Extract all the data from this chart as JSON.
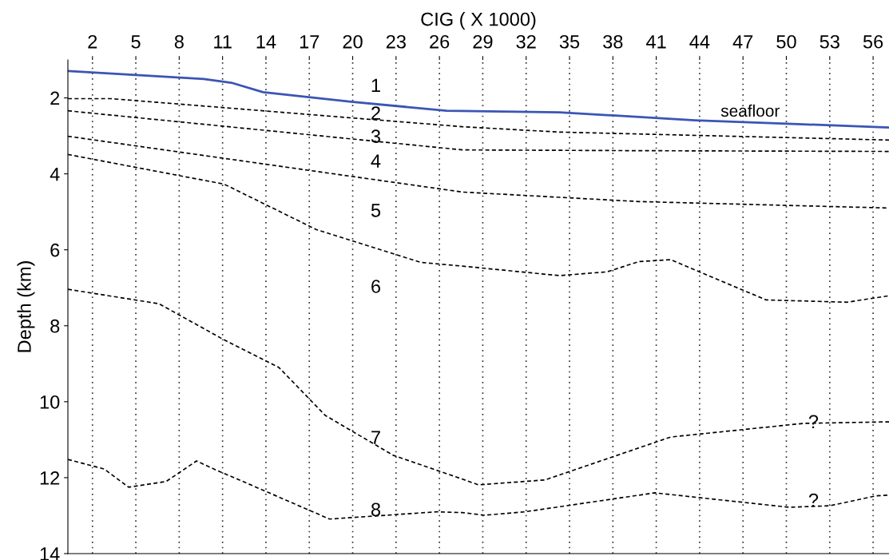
{
  "chart_data": {
    "type": "line",
    "xlabel": "CIG ( X 1000)",
    "ylabel": "Depth (km)",
    "xlim": [
      0.3,
      57.1
    ],
    "xticks": [
      2,
      5,
      8,
      11,
      14,
      17,
      20,
      23,
      26,
      29,
      32,
      35,
      38,
      41,
      44,
      47,
      50,
      53,
      56
    ],
    "ylim": [
      14,
      1.0
    ],
    "yticks": [
      2,
      4,
      6,
      8,
      10,
      12,
      14
    ],
    "grid": "x",
    "marker": "none",
    "series": [
      {
        "color": "#3b55b5",
        "line_style": "solid",
        "x": [
          0.3,
          9.7,
          11.6,
          13.8,
          19.9,
          26.5,
          34.3,
          43.7,
          50.8,
          57.1
        ],
        "values": [
          1.29,
          1.5,
          1.6,
          1.85,
          2.1,
          2.34,
          2.38,
          2.59,
          2.69,
          2.78
        ]
      },
      {
        "color": "#000000",
        "line_style": "dashed",
        "x": [
          0.3,
          3.3,
          27.6,
          34.3,
          57.1
        ],
        "values": [
          2.02,
          2.02,
          2.76,
          2.9,
          3.11
        ]
      },
      {
        "color": "#000000",
        "line_style": "dashed",
        "x": [
          0.3,
          27.6,
          39.8,
          57.1
        ],
        "values": [
          2.34,
          3.37,
          3.39,
          3.41
        ]
      },
      {
        "color": "#000000",
        "line_style": "dashed",
        "x": [
          0.3,
          27.6,
          39.8,
          57.1
        ],
        "values": [
          3.01,
          4.48,
          4.73,
          4.9
        ]
      },
      {
        "color": "#000000",
        "line_style": "dashed",
        "x": [
          0.3,
          11.1,
          17.5,
          24.7,
          27.6,
          34.3,
          37.6,
          39.8,
          42.0,
          45.3,
          48.6,
          54.2,
          57.1
        ],
        "values": [
          3.49,
          4.27,
          5.47,
          6.33,
          6.43,
          6.68,
          6.58,
          6.31,
          6.26,
          6.79,
          7.32,
          7.38,
          7.21
        ]
      },
      {
        "color": "#000000",
        "line_style": "dashed",
        "x": [
          0.3,
          6.6,
          11.1,
          14.9,
          18.1,
          22.8,
          27.6,
          28.7,
          33.3,
          42.0,
          51.2,
          57.1
        ],
        "values": [
          7.04,
          7.42,
          8.37,
          9.1,
          10.36,
          11.41,
          12.04,
          12.19,
          12.06,
          10.93,
          10.57,
          10.53
        ]
      },
      {
        "color": "#000000",
        "line_style": "dashed",
        "x": [
          0.3,
          2.8,
          4.5,
          7.1,
          9.2,
          10.5,
          11.8,
          18.4,
          25.8,
          27.6,
          29.1,
          31.9,
          40.9,
          50.2,
          53.0,
          56.2,
          57.1
        ],
        "values": [
          11.52,
          11.77,
          12.25,
          12.1,
          11.56,
          11.79,
          12.0,
          13.09,
          12.9,
          12.92,
          12.99,
          12.9,
          12.4,
          12.78,
          12.74,
          12.48,
          12.46
        ]
      }
    ],
    "annotations": [
      "1",
      "2",
      "3",
      "4",
      "5",
      "6",
      "7",
      "8",
      "seafloor",
      "?",
      "?"
    ]
  }
}
